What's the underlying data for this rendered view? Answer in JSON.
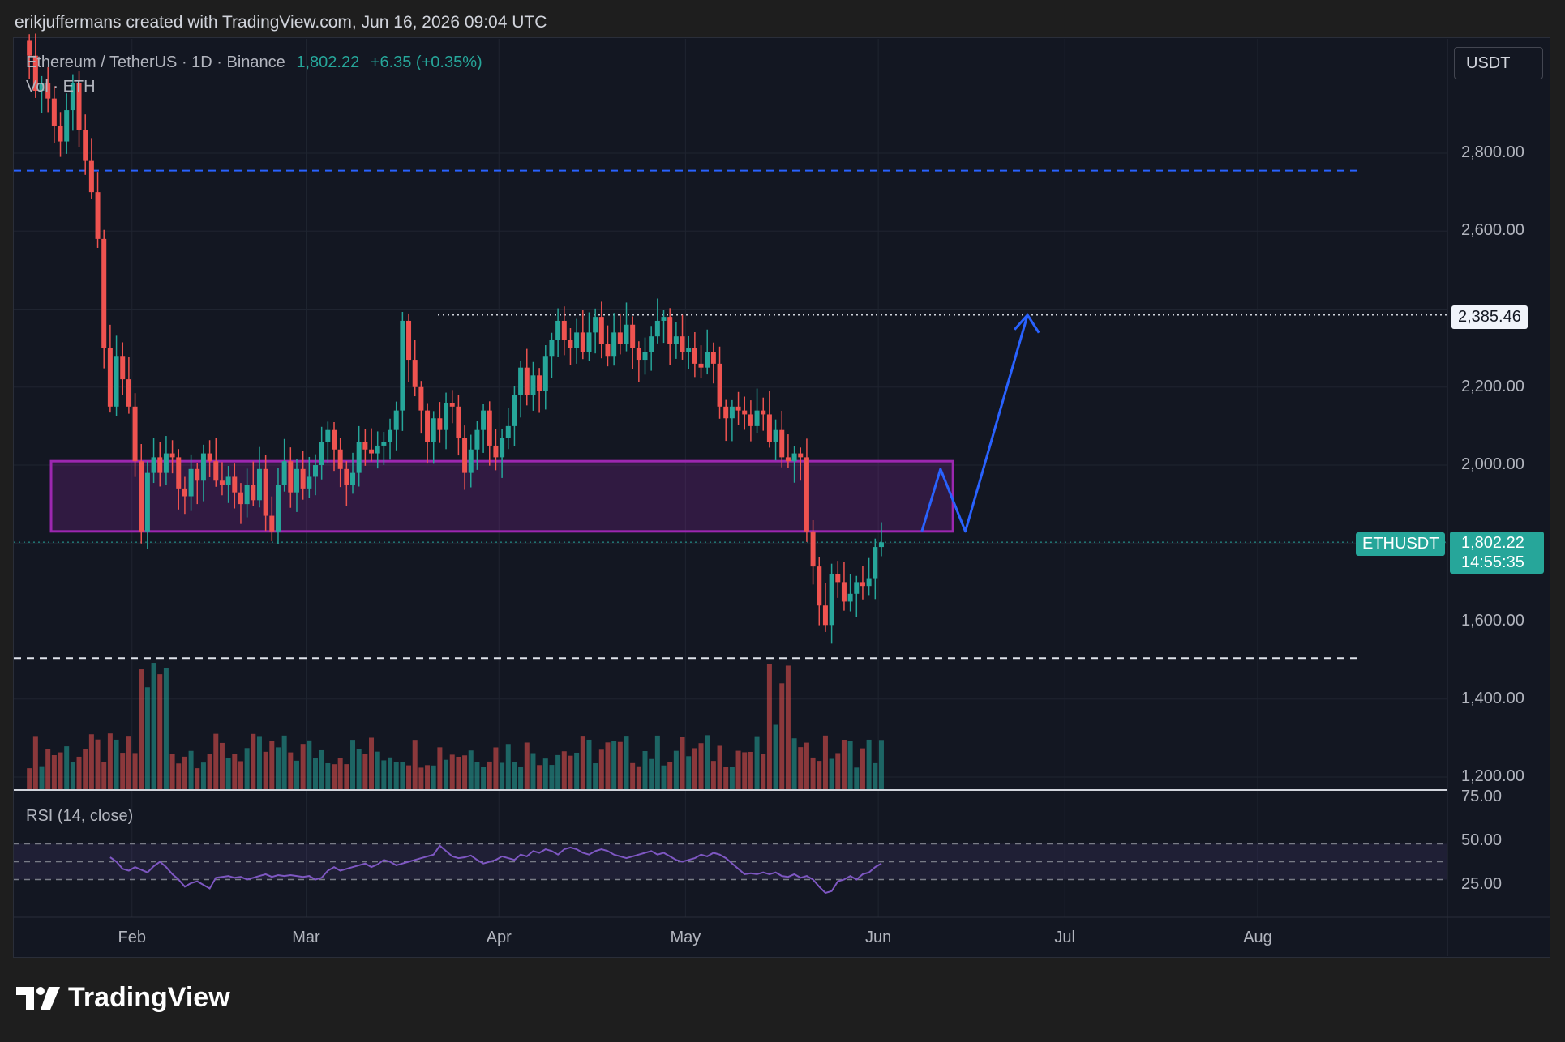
{
  "header": {
    "attribution": "erikjuffermans created with TradingView.com, Jun 16, 2026 09:04 UTC"
  },
  "legend": {
    "symbol": "Ethereum / TetherUS · 1D · Binance",
    "price": "1,802.22",
    "change": "+6.35 (+0.35%)",
    "volume": "Vol · ETH",
    "rsi": "RSI (14, close)"
  },
  "currency": "USDT",
  "tags": {
    "level": "2,385.46",
    "symbol": "ETHUSDT",
    "price": "1,802.22",
    "countdown": "14:55:35"
  },
  "brand": "TradingView",
  "colors": {
    "up": "#26a69a",
    "down": "#ef5350",
    "zone": "#9c27b0",
    "arrow": "#2962ff",
    "rsi": "#7e57c2"
  },
  "chart_data": {
    "type": "candlestick",
    "symbol": "ETHUSDT",
    "y_ticks": [
      "2,800.00",
      "2,600.00",
      "2,200.00",
      "2,000.00",
      "1,600.00",
      "1,400.00",
      "1,200.00"
    ],
    "x_ticks": [
      "Feb",
      "Mar",
      "Apr",
      "May",
      "Jun",
      "Jul",
      "Aug"
    ],
    "rsi_ticks": [
      "75.00",
      "50.00",
      "25.00"
    ],
    "ylim": [
      1180,
      3120
    ],
    "x_domain": {
      "start_day": 13,
      "end_day": 220
    },
    "close_sequence": [
      3050,
      2960,
      2980,
      2940,
      2870,
      2830,
      2910,
      2980,
      2860,
      2780,
      2700,
      2580,
      2300,
      2150,
      2280,
      2220,
      2150,
      2010,
      1830,
      1980,
      2020,
      1980,
      2030,
      2020,
      1940,
      1920,
      1990,
      1960,
      2030,
      2010,
      1960,
      1950,
      1970,
      1930,
      1900,
      1950,
      1910,
      1990,
      1870,
      1830,
      1950,
      2010,
      1930,
      1990,
      1940,
      1970,
      2000,
      2060,
      2090,
      2040,
      1990,
      1950,
      1980,
      2060,
      2040,
      2030,
      2050,
      2060,
      2090,
      2140,
      2370,
      2270,
      2200,
      2140,
      2060,
      2120,
      2090,
      2160,
      2150,
      2070,
      1980,
      2040,
      2090,
      2140,
      2050,
      2020,
      2070,
      2100,
      2180,
      2250,
      2180,
      2230,
      2190,
      2280,
      2320,
      2370,
      2320,
      2300,
      2340,
      2290,
      2340,
      2380,
      2310,
      2280,
      2340,
      2310,
      2360,
      2300,
      2270,
      2290,
      2330,
      2370,
      2380,
      2310,
      2330,
      2290,
      2300,
      2260,
      2250,
      2290,
      2260,
      2150,
      2120,
      2150,
      2140,
      2130,
      2100,
      2140,
      2130,
      2060,
      2090,
      2020,
      2010,
      2030,
      2020,
      1830,
      1740,
      1640,
      1590,
      1720,
      1700,
      1650,
      1670,
      1700,
      1690,
      1710,
      1790,
      1802
    ],
    "volume_note": "volume bars per candle, spikes at early Feb and early Jun",
    "rsi_sequence": [
      55,
      50,
      42,
      40,
      44,
      41,
      38,
      45,
      50,
      44,
      36,
      30,
      22,
      26,
      28,
      24,
      20,
      32,
      33,
      34,
      32,
      33,
      30,
      32,
      34,
      36,
      33,
      35,
      34,
      35,
      34,
      33,
      34,
      30,
      32,
      40,
      44,
      40,
      42,
      44,
      46,
      48,
      44,
      47,
      52,
      50,
      46,
      48,
      50,
      52,
      54,
      56,
      58,
      68,
      62,
      56,
      54,
      55,
      57,
      52,
      48,
      50,
      52,
      56,
      54,
      52,
      58,
      56,
      62,
      60,
      64,
      62,
      58,
      64,
      66,
      64,
      60,
      58,
      62,
      64,
      62,
      58,
      56,
      54,
      56,
      58,
      60,
      62,
      58,
      60,
      56,
      52,
      50,
      52,
      54,
      58,
      56,
      60,
      58,
      54,
      48,
      42,
      36,
      37,
      36,
      38,
      36,
      38,
      34,
      33,
      36,
      32,
      34,
      30,
      22,
      15,
      17,
      28,
      30,
      34,
      30,
      36,
      38,
      44,
      48
    ],
    "zone": {
      "top": 2010,
      "bottom": 1830,
      "from_day": 19,
      "to_day": 164
    },
    "level_line": 2385.46,
    "dashed_lines": [
      2755,
      1505
    ],
    "projection_path": [
      [
        159,
        1830
      ],
      [
        162,
        1990
      ],
      [
        166,
        1830
      ],
      [
        176,
        2385
      ]
    ]
  }
}
